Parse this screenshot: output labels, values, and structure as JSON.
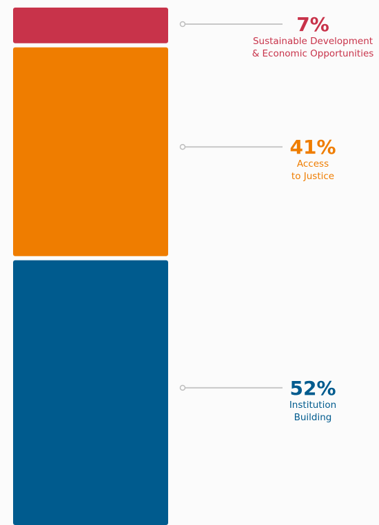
{
  "chart_data": {
    "type": "stacked-bar",
    "series": [
      {
        "name_lines": [
          "Sustainable Development",
          "& Economic Opportunities"
        ],
        "color": "#c8334a",
        "values": [
          7
        ],
        "value_labels": [
          "7%"
        ]
      },
      {
        "name_lines": [
          "Access",
          "to Justice"
        ],
        "color": "#ef7d00",
        "values": [
          41
        ],
        "value_labels": [
          "41%"
        ]
      },
      {
        "name_lines": [
          "Institution",
          "Building"
        ],
        "color": "#005b8e",
        "values": [
          52
        ],
        "value_labels": [
          "52%"
        ]
      }
    ]
  }
}
